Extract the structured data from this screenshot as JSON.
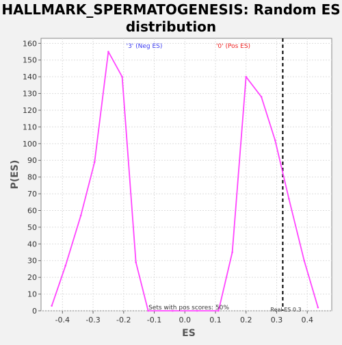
{
  "chart_data": {
    "type": "line",
    "title": [
      "HALLMARK_SPERMATOGENESIS: Random ES",
      "distribution"
    ],
    "xlabel": "ES",
    "ylabel": "P(ES)",
    "xlim": [
      -0.47,
      0.48
    ],
    "ylim": [
      0,
      163
    ],
    "x_ticks": [
      -0.4,
      -0.3,
      -0.2,
      -0.1,
      0.0,
      0.1,
      0.2,
      0.3,
      0.4
    ],
    "x_tick_labels": [
      "-0.4",
      "-0.3",
      "-0.2",
      "-0.1",
      "0.0",
      "0.1",
      "0.2",
      "0.3",
      "0.4"
    ],
    "y_ticks": [
      0,
      10,
      20,
      30,
      40,
      50,
      60,
      70,
      80,
      90,
      100,
      110,
      120,
      130,
      140,
      150,
      160
    ],
    "y_tick_labels": [
      "0",
      "10",
      "20",
      "30",
      "40",
      "50",
      "60",
      "70",
      "80",
      "90",
      "100",
      "110",
      "120",
      "130",
      "140",
      "150",
      "160"
    ],
    "grid": true,
    "series": [
      {
        "color": "#ff44ff",
        "points": [
          [
            -0.435,
            3
          ],
          [
            -0.39,
            27
          ],
          [
            -0.34,
            57
          ],
          [
            -0.295,
            89
          ],
          [
            -0.25,
            155
          ],
          [
            -0.205,
            140
          ],
          [
            -0.16,
            29
          ],
          [
            -0.12,
            0
          ],
          [
            -0.04,
            0
          ],
          [
            0.04,
            0
          ],
          [
            0.11,
            0
          ],
          [
            0.155,
            35
          ],
          [
            0.2,
            140
          ],
          [
            0.25,
            128
          ],
          [
            0.295,
            102
          ],
          [
            0.34,
            67
          ],
          [
            0.39,
            30
          ],
          [
            0.435,
            2
          ]
        ]
      }
    ],
    "reference_line": {
      "x": 0.32,
      "style": "dashed",
      "color": "#000000"
    },
    "annotations": {
      "neg_label": {
        "text": "'3' (Neg ES)",
        "color": "#3a3af0"
      },
      "pos_label": {
        "text": "'0' (Pos ES)",
        "color": "#ee2222"
      },
      "pos_scores": {
        "text": "Sets with pos scores: 50%"
      },
      "real_es": {
        "text": "Real ES 0.3"
      }
    }
  }
}
